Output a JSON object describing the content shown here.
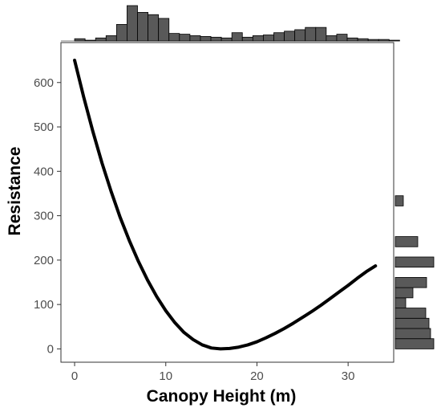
{
  "chart_data": {
    "type": "line",
    "title": "",
    "xlabel": "Canopy Height (m)",
    "ylabel": "Resistance",
    "xlim": [
      -1.5,
      35
    ],
    "ylim": [
      -30,
      690
    ],
    "x_ticks": [
      0,
      10,
      20,
      30
    ],
    "y_ticks": [
      0,
      100,
      200,
      300,
      400,
      500,
      600
    ],
    "grid": false,
    "legend": "none",
    "series": [
      {
        "x": [
          0,
          1,
          2,
          3,
          4,
          5,
          6,
          7,
          8,
          9,
          10,
          11,
          12,
          13,
          14,
          15,
          16,
          17,
          18,
          19,
          20,
          21,
          22,
          23,
          24,
          25,
          26,
          27,
          28,
          29,
          30,
          31,
          32,
          33
        ],
        "values": [
          650,
          567,
          490,
          419,
          355,
          296,
          244,
          197,
          155,
          118,
          86,
          59,
          37,
          21,
          9,
          2,
          0,
          1,
          4,
          9,
          16,
          25,
          35,
          46,
          58,
          71,
          84,
          98,
          113,
          128,
          143,
          159,
          174,
          187
        ]
      }
    ],
    "marginal_x": {
      "bin_width": 1.15,
      "bin_start": 0,
      "counts": [
        3,
        1,
        4,
        7,
        22,
        47,
        38,
        35,
        30,
        10,
        9,
        7,
        6,
        5,
        4,
        11,
        5,
        7,
        8,
        11,
        13,
        15,
        18,
        18,
        7,
        9,
        4,
        3,
        2,
        2,
        1
      ]
    },
    "marginal_y": {
      "bin_width": 23,
      "bin_start": 0,
      "counts": [
        48,
        44,
        42,
        38,
        13,
        22,
        39,
        0,
        48,
        0,
        28,
        0,
        0,
        0,
        10,
        0,
        0,
        0,
        0,
        0,
        0,
        0,
        0,
        0,
        0,
        0,
        0,
        0,
        0,
        0,
        0,
        0,
        0,
        0,
        0,
        0,
        0,
        0,
        0,
        0,
        0,
        0,
        0,
        0,
        0,
        0,
        0,
        0,
        0,
        0,
        0,
        0,
        0,
        0,
        0,
        0,
        0,
        0,
        0,
        0,
        0,
        0,
        0,
        0,
        0,
        0,
        0
      ]
    },
    "colors": {
      "line": "#000000",
      "histogram_fill": "#595959",
      "histogram_stroke": "#000000",
      "panel_border": "#333333",
      "tick_text": "#4d4d4d"
    }
  }
}
